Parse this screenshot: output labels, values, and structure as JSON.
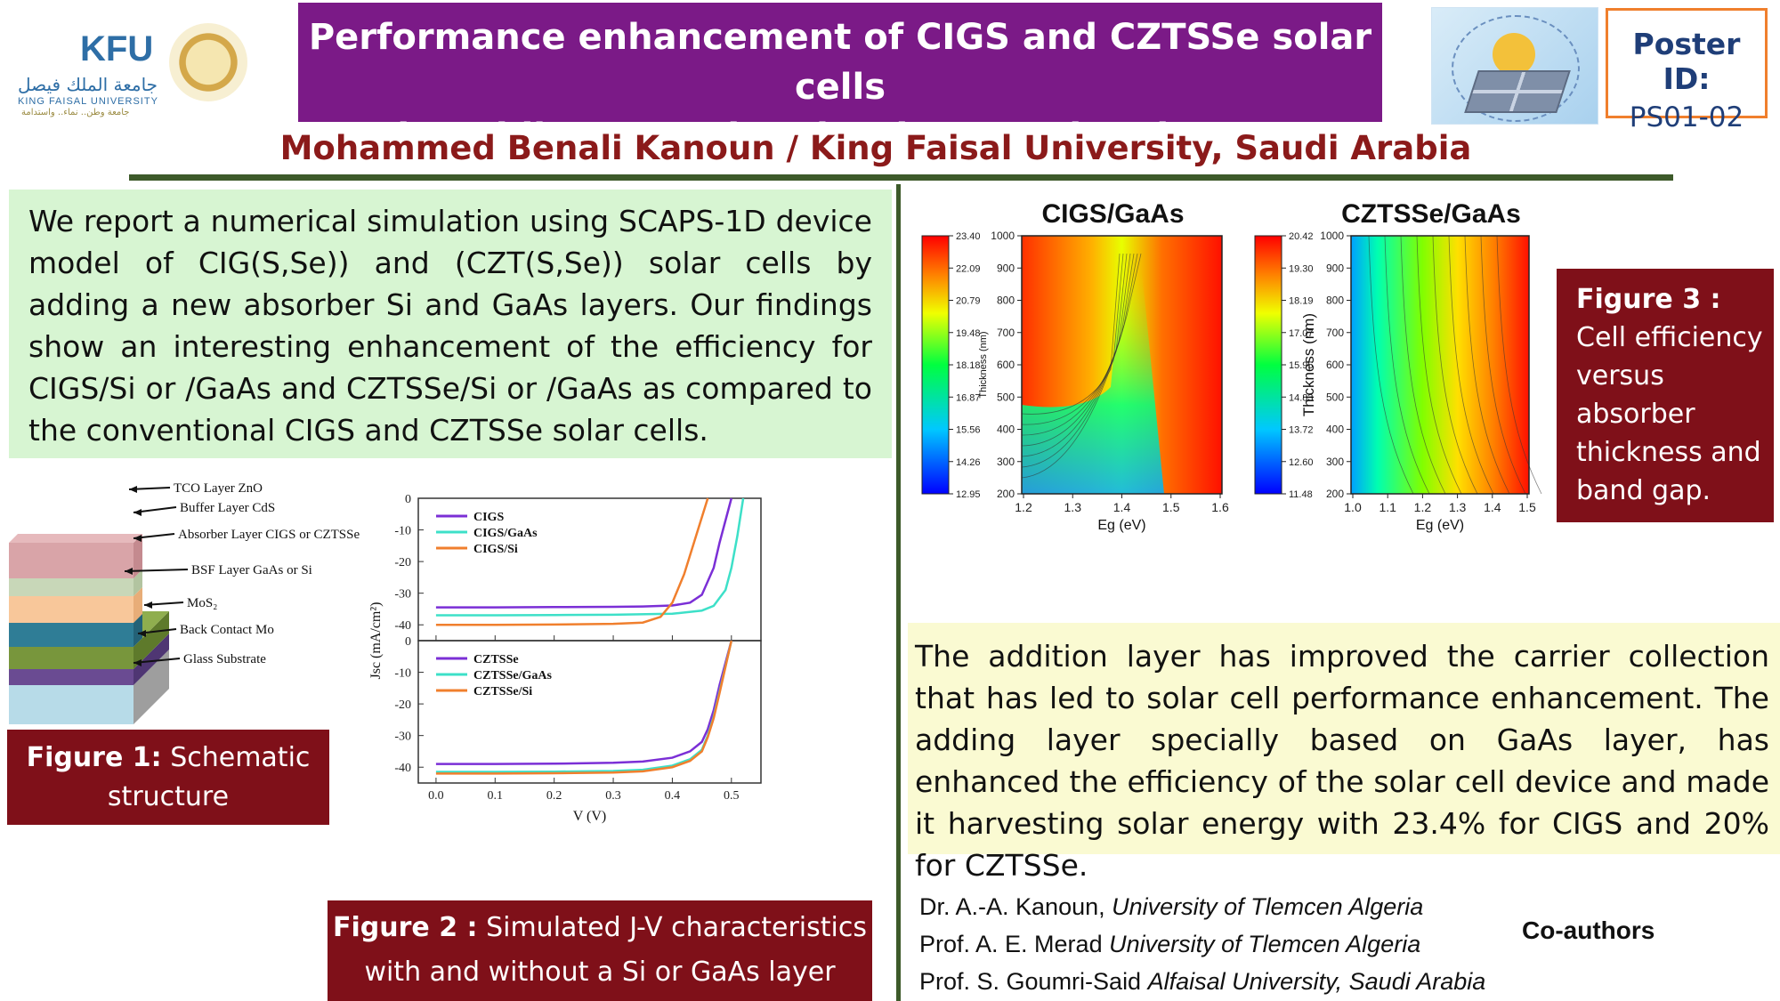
{
  "header": {
    "logo": {
      "name": "KFU",
      "arabic": "جامعة الملك فيصل",
      "english": "KING FAISAL UNIVERSITY",
      "tagline": "جامعة وطن.. نماء.. واستدامة"
    },
    "title_line1": "Performance enhancement of CIGS and CZTSSe solar cells",
    "title_line2": "by adding new absorber layers: Si and GaAs",
    "poster_id_label": "Poster ID:",
    "poster_id_value": "PS01-02",
    "author_line": "Mohammed Benali Kanoun / King Faisal University, Saudi Arabia",
    "colors": {
      "title_bg": "#7b1a87",
      "author": "#8b1a1a",
      "poster_id_border": "#f07f2d",
      "rule": "#3d5a2a"
    }
  },
  "abstract": "We report a numerical simulation using SCAPS-1D device model of CIG(S,Se)) and (CZT(S,Se)) solar cells by adding a new absorber Si and GaAs layers. Our findings show an interesting enhancement of the efficiency for CIGS/Si or /GaAs and CZTSSe/Si or /GaAs as compared to the conventional CIGS and CZTSSe solar cells.",
  "figure1": {
    "caption_bold": "Figure 1:",
    "caption_rest": " Schematic structure",
    "layers": [
      {
        "label": "TCO Layer ZnO",
        "color": "#d9a4a8"
      },
      {
        "label": "Buffer Layer CdS",
        "color": "#c8d7b8"
      },
      {
        "label": "Absorber Layer CIGS or  CZTSSe",
        "color": "#f8c79a"
      },
      {
        "label": "BSF Layer GaAs or  Si",
        "color": "#2f7d96"
      },
      {
        "label": "MoS₂",
        "color": "#78963c"
      },
      {
        "label": "Back Contact Mo",
        "color": "#6a4b92"
      },
      {
        "label": "Glass Substrate",
        "color": "#b7dbe8"
      }
    ]
  },
  "figure2": {
    "caption_bold": "Figure 2 :",
    "caption_rest": " Simulated J-V characteristics with and without a Si or GaAs layer"
  },
  "figure3": {
    "caption_bold": "Figure 3 :",
    "caption_rest": " Cell efficiency versus absorber thickness and band gap."
  },
  "chart_data": [
    {
      "type": "line",
      "title": "",
      "xlabel": "V (V)",
      "ylabel": "Jsc (mA/cm²)",
      "xlim": [
        -0.03,
        0.55
      ],
      "ylim": [
        -45,
        0
      ],
      "xticks": [
        "0.0",
        "0.1",
        "0.2",
        "0.3",
        "0.4",
        "0.5"
      ],
      "yticks": [
        "0",
        "-10",
        "-20",
        "-30",
        "-40"
      ],
      "legend_position": "top-left",
      "series": [
        {
          "name": "CIGS",
          "color": "#7b2fd6",
          "x": [
            0,
            0.1,
            0.2,
            0.3,
            0.35,
            0.4,
            0.43,
            0.45,
            0.47,
            0.48,
            0.5
          ],
          "y": [
            -34.5,
            -34.5,
            -34.4,
            -34.3,
            -34.2,
            -33.9,
            -33,
            -30.5,
            -22,
            -14,
            0
          ]
        },
        {
          "name": "CIGS/GaAs",
          "color": "#3de0c8",
          "x": [
            0,
            0.1,
            0.2,
            0.3,
            0.4,
            0.45,
            0.47,
            0.49,
            0.5,
            0.51,
            0.52
          ],
          "y": [
            -37,
            -37,
            -36.9,
            -36.8,
            -36.5,
            -35.5,
            -34,
            -29,
            -22,
            -12,
            0
          ]
        },
        {
          "name": "CIGS/Si",
          "color": "#f07f2d",
          "x": [
            0,
            0.1,
            0.2,
            0.3,
            0.35,
            0.38,
            0.4,
            0.42,
            0.44,
            0.46
          ],
          "y": [
            -40,
            -40,
            -39.9,
            -39.7,
            -39.3,
            -37.5,
            -33,
            -24,
            -12,
            0
          ]
        }
      ]
    },
    {
      "type": "line",
      "title": "",
      "xlabel": "V (V)",
      "ylabel": "Jsc (mA/cm²)",
      "xlim": [
        -0.03,
        0.55
      ],
      "ylim": [
        -45,
        0
      ],
      "xticks": [
        "0.0",
        "0.1",
        "0.2",
        "0.3",
        "0.4",
        "0.5"
      ],
      "yticks": [
        "0",
        "-10",
        "-20",
        "-30",
        "-40"
      ],
      "legend_position": "top-left",
      "series": [
        {
          "name": "CZTSSe",
          "color": "#7b2fd6",
          "x": [
            0,
            0.1,
            0.2,
            0.3,
            0.35,
            0.4,
            0.43,
            0.45,
            0.46,
            0.47,
            0.48,
            0.5
          ],
          "y": [
            -39,
            -39,
            -38.9,
            -38.6,
            -38.2,
            -37,
            -35,
            -32,
            -28,
            -22,
            -14,
            0
          ]
        },
        {
          "name": "CZTSSe/GaAs",
          "color": "#3de0c8",
          "x": [
            0,
            0.1,
            0.2,
            0.3,
            0.35,
            0.4,
            0.43,
            0.45,
            0.46,
            0.47,
            0.48,
            0.5
          ],
          "y": [
            -41.5,
            -41.5,
            -41.4,
            -41.2,
            -40.8,
            -39.5,
            -37.5,
            -34.5,
            -30,
            -24,
            -16,
            0
          ]
        },
        {
          "name": "CZTSSe/Si",
          "color": "#f07f2d",
          "x": [
            0,
            0.1,
            0.2,
            0.3,
            0.35,
            0.4,
            0.43,
            0.45,
            0.46,
            0.47,
            0.48,
            0.5
          ],
          "y": [
            -42,
            -42,
            -41.9,
            -41.7,
            -41.3,
            -40,
            -38,
            -35,
            -30.5,
            -24.5,
            -16.5,
            0
          ]
        }
      ]
    },
    {
      "type": "heatmap",
      "title": "CIGS/GaAs",
      "xlabel": "Eg (eV)",
      "ylabel": "Thickness (nm)",
      "xticks": [
        "1.2",
        "1.3",
        "1.4",
        "1.5",
        "1.6"
      ],
      "yticks": [
        "200",
        "300",
        "400",
        "500",
        "600",
        "700",
        "800",
        "900",
        "1000"
      ],
      "colorbar_ticks": [
        "23.40",
        "22.09",
        "20.79",
        "19.48",
        "18.18",
        "16.87",
        "15.56",
        "14.26",
        "12.95"
      ],
      "zrange": [
        12.95,
        23.4
      ]
    },
    {
      "type": "heatmap",
      "title": "CZTSSe/GaAs",
      "xlabel": "Eg (eV)",
      "ylabel": "Thickness (nm)",
      "xticks": [
        "1.0",
        "1.1",
        "1.2",
        "1.3",
        "1.4",
        "1.5"
      ],
      "yticks": [
        "200",
        "300",
        "400",
        "500",
        "600",
        "700",
        "800",
        "900",
        "1000"
      ],
      "colorbar_ticks": [
        "20.42",
        "19.30",
        "18.19",
        "17.07",
        "15.95",
        "14.83",
        "13.72",
        "12.60",
        "11.48"
      ],
      "zrange": [
        11.48,
        20.42
      ]
    }
  ],
  "conclusion": "The addition layer has improved the carrier collection that has led to solar cell performance enhancement. The adding layer specially based on GaAs layer, has enhanced the efficiency of the solar cell device and made it harvesting solar energy with 23.4% for CIGS and 20% for CZTSSe.",
  "coauthors": {
    "label": "Co-authors",
    "list": [
      {
        "name": "Dr. A.-A. Kanoun, ",
        "affil": "University of Tlemcen Algeria"
      },
      {
        "name": "Prof. A. E. Merad ",
        "affil": "University of Tlemcen Algeria"
      },
      {
        "name": "Prof. S. Goumri-Said ",
        "affil": "Alfaisal University, Saudi Arabia"
      }
    ]
  }
}
